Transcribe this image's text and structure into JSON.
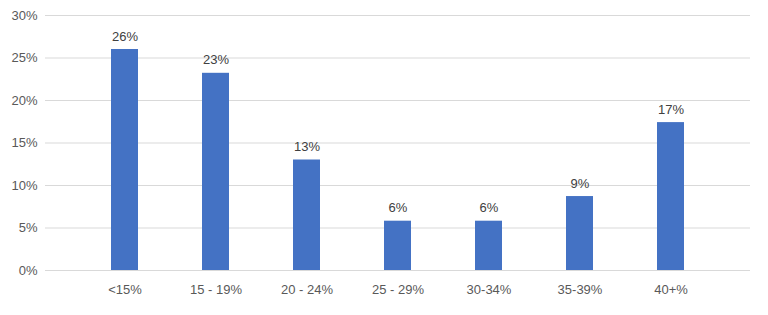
{
  "chart_data": {
    "type": "bar",
    "categories": [
      "<15%",
      "15 - 19%",
      "20 - 24%",
      "25 - 29%",
      "30-34%",
      "35-39%",
      "40+%"
    ],
    "values": [
      26,
      23.2,
      13,
      5.8,
      5.8,
      8.7,
      17.4
    ],
    "value_labels": [
      "26%",
      "23%",
      "13%",
      "6%",
      "6%",
      "9%",
      "17%"
    ],
    "color": "#4472c4",
    "ylim": [
      0,
      30
    ],
    "yticks": [
      {
        "value": 0,
        "label": "0%"
      },
      {
        "value": 5,
        "label": "5%"
      },
      {
        "value": 10,
        "label": "10%"
      },
      {
        "value": 15,
        "label": "15%"
      },
      {
        "value": 20,
        "label": "20%"
      },
      {
        "value": 25,
        "label": "25%"
      },
      {
        "value": 30,
        "label": "30%"
      }
    ],
    "grid": true,
    "data_labels": true
  }
}
